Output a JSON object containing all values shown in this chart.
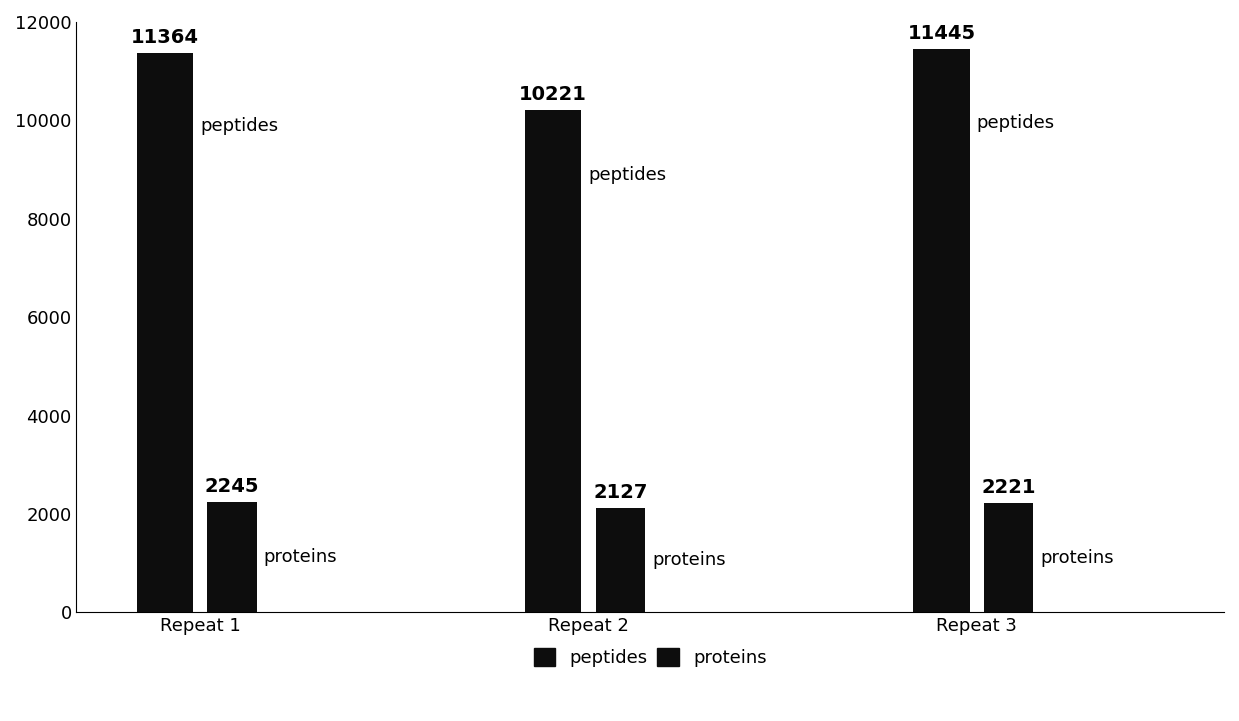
{
  "groups": [
    "Repeat 1",
    "Repeat 2",
    "Repeat 3"
  ],
  "peptides": [
    11364,
    10221,
    11445
  ],
  "proteins": [
    2245,
    2127,
    2221
  ],
  "bar_color": "#0d0d0d",
  "ylim": [
    0,
    12000
  ],
  "yticks": [
    0,
    2000,
    4000,
    6000,
    8000,
    10000,
    12000
  ],
  "peptide_bar_width": 0.32,
  "protein_bar_width": 0.28,
  "group_centers": [
    1.0,
    3.2,
    5.4
  ],
  "bar_gap": 0.08,
  "legend_labels": [
    "peptides",
    "proteins"
  ],
  "annotation_fontsize": 14,
  "label_fontsize": 13,
  "tick_fontsize": 13,
  "legend_fontsize": 13,
  "background_color": "#ffffff"
}
